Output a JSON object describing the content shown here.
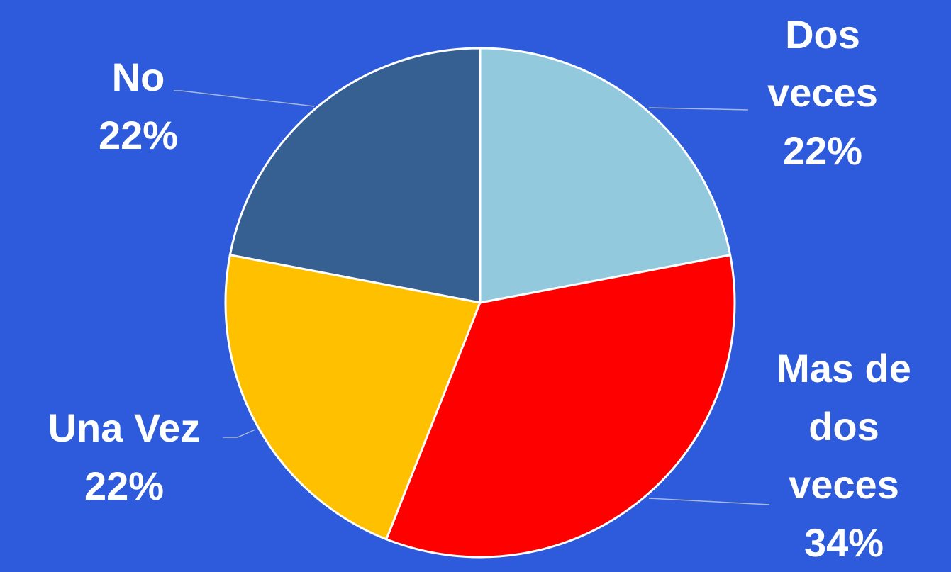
{
  "chart_data": {
    "type": "pie",
    "categories": [
      "Dos veces",
      "Mas de dos veces",
      "Una Vez",
      "No"
    ],
    "values": [
      22,
      34,
      22,
      22
    ],
    "value_labels": [
      "22%",
      "34%",
      "22%",
      "22%"
    ],
    "colors": [
      "#92c9dc",
      "#ff0000",
      "#ffc000",
      "#366092"
    ]
  }
}
